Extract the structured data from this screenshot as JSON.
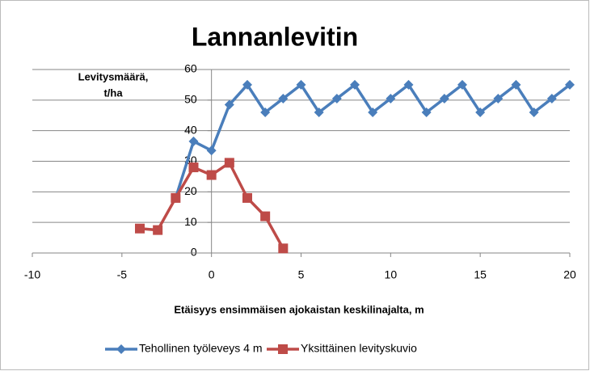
{
  "chart_data": {
    "type": "line",
    "title": "Lannanlevitin",
    "y_label": [
      "Levitysmäärä,",
      "t/ha"
    ],
    "x_label": "Etäisyys ensimmäisen ajokaistan  keskilinajalta,  m",
    "xlim": [
      -10,
      20
    ],
    "xticks": [
      -10,
      -5,
      0,
      5,
      10,
      15,
      20
    ],
    "ylim": [
      0,
      60
    ],
    "yticks": [
      0,
      10,
      20,
      30,
      40,
      50,
      60
    ],
    "grid": true,
    "legend": "bottom",
    "series": [
      {
        "name": "Tehollinen työleveys 4 m",
        "color": "#4a7ebb",
        "marker": "diamond",
        "x": [
          -2,
          -1,
          0,
          1,
          2,
          3,
          4,
          5,
          6,
          7,
          8,
          9,
          10,
          11,
          12,
          13,
          14,
          15,
          16,
          17,
          18,
          19,
          20
        ],
        "values": [
          18,
          36.5,
          33.5,
          48.5,
          55,
          46,
          50.5,
          55,
          46,
          50.5,
          55,
          46,
          50.5,
          55,
          46,
          50.5,
          55,
          46,
          50.5,
          55,
          46,
          50.5,
          55
        ]
      },
      {
        "name": "Yksittäinen levityskuvio",
        "color": "#be4b48",
        "marker": "square",
        "x": [
          -4,
          -3,
          -2,
          -1,
          0,
          1,
          2,
          3,
          4
        ],
        "values": [
          8,
          7.5,
          18,
          28,
          25.5,
          29.5,
          18,
          12,
          1.5
        ]
      }
    ]
  }
}
